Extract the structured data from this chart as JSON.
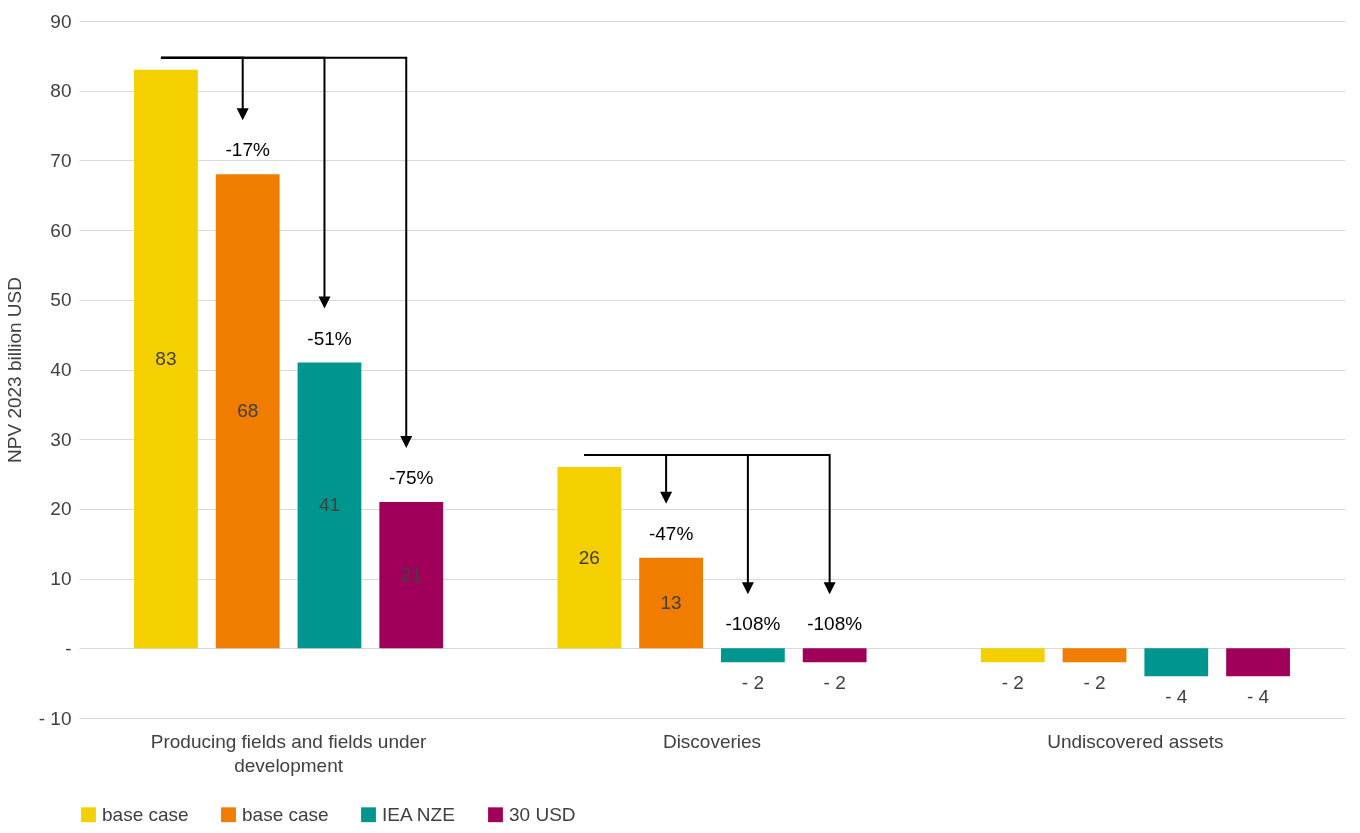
{
  "chart_data": {
    "type": "bar",
    "ylabel": "NPV 2023 billion USD",
    "categories": [
      "Producing fields and fields under development",
      "Discoveries",
      "Undiscovered assets"
    ],
    "series": [
      {
        "name": "base case",
        "color": "#f5d000",
        "values": [
          83,
          26,
          -2
        ],
        "value_labels": [
          "83",
          "26",
          "- 2"
        ]
      },
      {
        "name": "base case",
        "color": "#f07c00",
        "values": [
          68,
          13,
          -2
        ],
        "value_labels": [
          "68",
          "13",
          "- 2"
        ]
      },
      {
        "name": "IEA NZE",
        "color": "#009690",
        "values": [
          41,
          -2,
          -4
        ],
        "value_labels": [
          "41",
          "- 2",
          "- 4"
        ]
      },
      {
        "name": "30 USD",
        "color": "#a0005a",
        "values": [
          21,
          -2,
          -4
        ],
        "value_labels": [
          "21",
          "- 2",
          "- 4"
        ]
      }
    ],
    "ylim": [
      -10,
      90
    ],
    "yticks": [
      {
        "value": -10,
        "label": "- 10"
      },
      {
        "value": 0,
        "label": "-"
      },
      10,
      20,
      30,
      40,
      50,
      60,
      70,
      80,
      90
    ],
    "grid": "y",
    "legend": "bottom",
    "annotations": [
      "-17%",
      "-51%",
      "-75%",
      "-47%",
      "-108%",
      "-108%"
    ]
  }
}
